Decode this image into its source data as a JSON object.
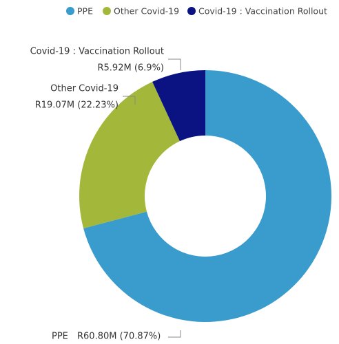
{
  "chart_data": {
    "type": "donut",
    "categories": [
      "PPE",
      "Other Covid-19",
      "Covid-19 : Vaccination Rollout"
    ],
    "values": [
      60800000,
      19070000,
      5920000
    ],
    "value_labels": [
      "R60.80M (70.87%)",
      "R19.07M (22.23%)",
      "R5.92M (6.9%)"
    ],
    "colors": [
      "#3a9bcd",
      "#a3b83a",
      "#0b1282"
    ],
    "legend": "top"
  }
}
